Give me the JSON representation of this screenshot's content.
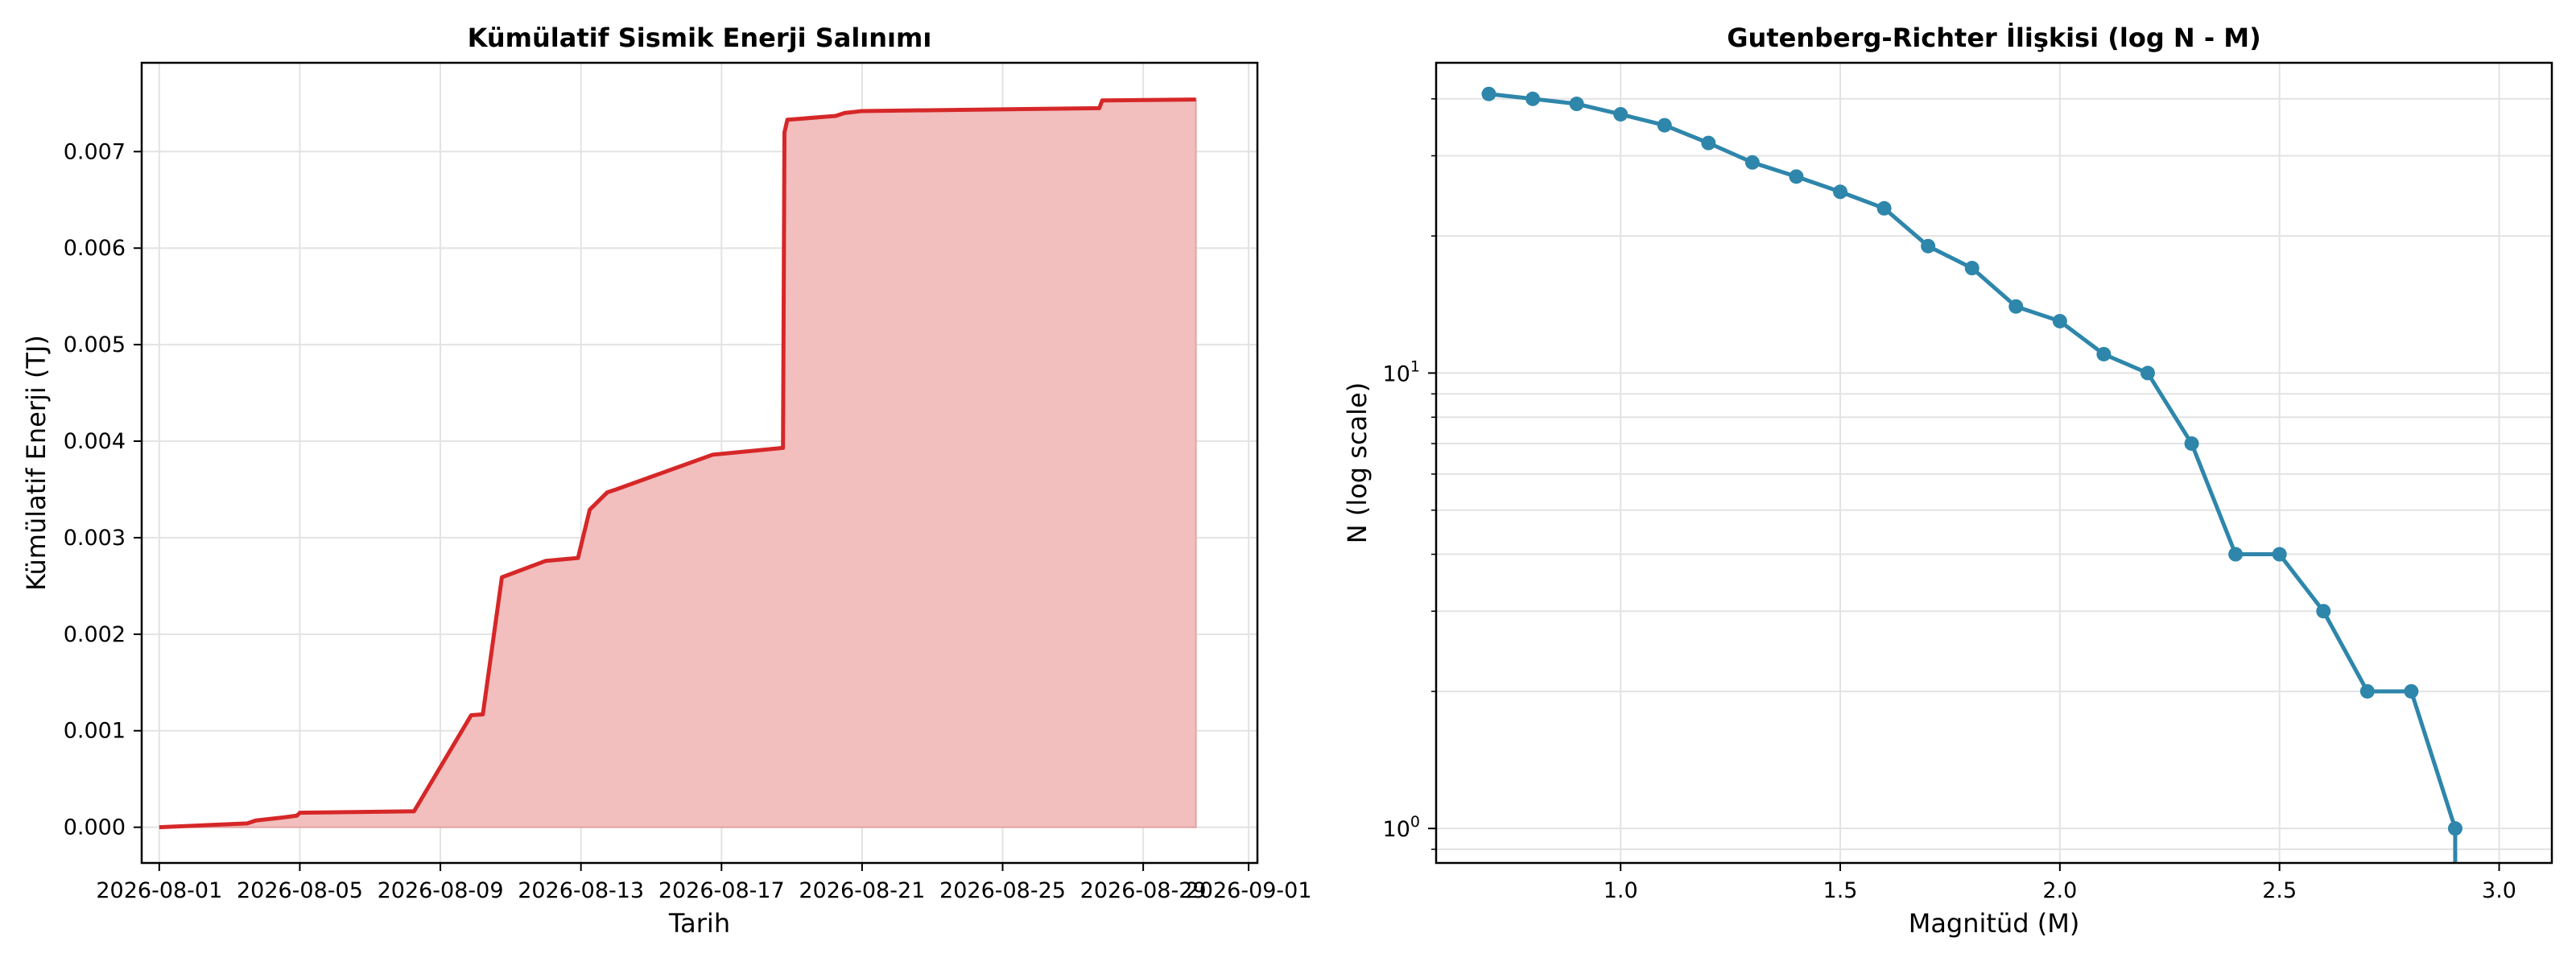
{
  "chart_data": [
    {
      "type": "area",
      "title": "Kümülatif Sismik Enerji Salınımı",
      "xlabel": "Tarih",
      "ylabel": "Kümülatif Enerji (TJ)",
      "x_type": "date",
      "xlim": [
        "2026-07-31T12:00",
        "2026-09-01T06:00"
      ],
      "ylim": [
        -0.00037,
        0.00792
      ],
      "x_ticks": [
        "2026-08-01",
        "2026-08-05",
        "2026-08-09",
        "2026-08-13",
        "2026-08-17",
        "2026-08-21",
        "2026-08-25",
        "2026-08-29",
        "2026-09-01"
      ],
      "y_ticks": [
        "0.000",
        "0.001",
        "0.002",
        "0.003",
        "0.004",
        "0.005",
        "0.006",
        "0.007"
      ],
      "y_tick_values": [
        0,
        0.001,
        0.002,
        0.003,
        0.004,
        0.005,
        0.006,
        0.007
      ],
      "grid": true,
      "line_color": "#d62728",
      "fill_color": "#f2bebe",
      "series": [
        {
          "x": [
            "2026-08-01T00:00",
            "2026-08-03T12:00",
            "2026-08-03T18:00",
            "2026-08-04T12:00",
            "2026-08-04T22:00",
            "2026-08-05T00:00",
            "2026-08-08T06:00",
            "2026-08-09T21:00",
            "2026-08-10T05:00",
            "2026-08-10T18:00",
            "2026-08-12T00:00",
            "2026-08-12T22:00",
            "2026-08-13T06:00",
            "2026-08-13T18:00",
            "2026-08-14T00:00",
            "2026-08-16T18:00",
            "2026-08-18T18:00",
            "2026-08-18T19:00",
            "2026-08-18T21:00",
            "2026-08-19T06:00",
            "2026-08-20T06:00",
            "2026-08-20T12:00",
            "2026-08-21T00:00",
            "2026-08-27T18:00",
            "2026-08-27T20:00",
            "2026-08-30T12:00"
          ],
          "y": [
            0.0,
            4e-05,
            7e-05,
            0.0001,
            0.00012,
            0.00015,
            0.000165,
            0.00116,
            0.00117,
            0.00259,
            0.00276,
            0.00279,
            0.00329,
            0.00347,
            0.0035,
            0.00386,
            0.00393,
            0.0072,
            0.00733,
            0.00734,
            0.00737,
            0.0074,
            0.00742,
            0.00745,
            0.00753,
            0.00754
          ]
        }
      ]
    },
    {
      "type": "line",
      "title": "Gutenberg-Richter İlişkisi (log N - M)",
      "xlabel": "Magnitüd (M)",
      "ylabel": "N (log scale)",
      "y_scale": "log",
      "xlim": [
        0.58,
        3.12
      ],
      "ylim": [
        0.84,
        48
      ],
      "x_ticks": [
        "1.0",
        "1.5",
        "2.0",
        "2.5",
        "3.0"
      ],
      "x_tick_values": [
        1.0,
        1.5,
        2.0,
        2.5,
        3.0
      ],
      "y_ticks": [
        "10",
        "10"
      ],
      "y_tick_exponents": [
        "0",
        "1"
      ],
      "y_tick_values": [
        1,
        10
      ],
      "grid": true,
      "line_color": "#2e86ab",
      "series": [
        {
          "x": [
            0.7,
            0.8,
            0.9,
            1.0,
            1.1,
            1.2,
            1.3,
            1.4,
            1.5,
            1.6,
            1.7,
            1.8,
            1.9,
            2.0,
            2.1,
            2.2,
            2.3,
            2.4,
            2.5,
            2.6,
            2.7,
            2.8,
            2.9
          ],
          "y": [
            41,
            40,
            39,
            37,
            35,
            32,
            29,
            27,
            25,
            23,
            19,
            17,
            14,
            13,
            11,
            10,
            7,
            4,
            4,
            3,
            2,
            2,
            1
          ]
        }
      ]
    }
  ]
}
